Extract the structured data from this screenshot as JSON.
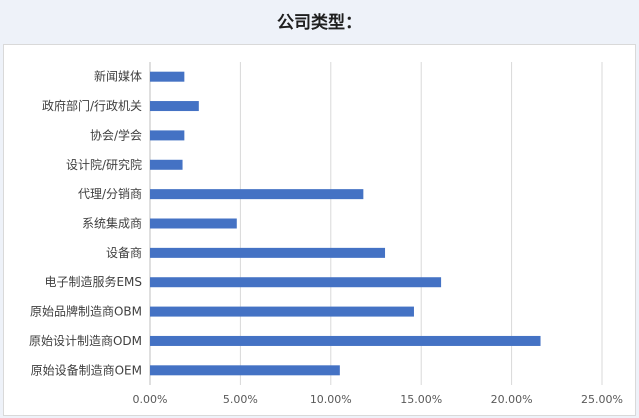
{
  "title": "公司类型：",
  "chart_data": {
    "type": "bar",
    "orientation": "horizontal",
    "title": "公司类型：",
    "categories": [
      "新闻媒体",
      "政府部门/行政机关",
      "协会/学会",
      "设计院/研究院",
      "代理/分销商",
      "系统集成商",
      "设备商",
      "电子制造服务EMS",
      "原始品牌制造商OBM",
      "原始设计制造商ODM",
      "原始设备制造商OEM"
    ],
    "values": [
      1.9,
      2.7,
      1.9,
      1.8,
      11.8,
      4.8,
      13.0,
      16.1,
      14.6,
      21.6,
      10.5
    ],
    "xlim": [
      0,
      25
    ],
    "xticks": [
      "0.00%",
      "5.00%",
      "10.00%",
      "15.00%",
      "20.00%",
      "25.00%"
    ],
    "grid": true,
    "colors": {
      "bar": "#4472c4",
      "grid": "#d9d9d9"
    }
  }
}
